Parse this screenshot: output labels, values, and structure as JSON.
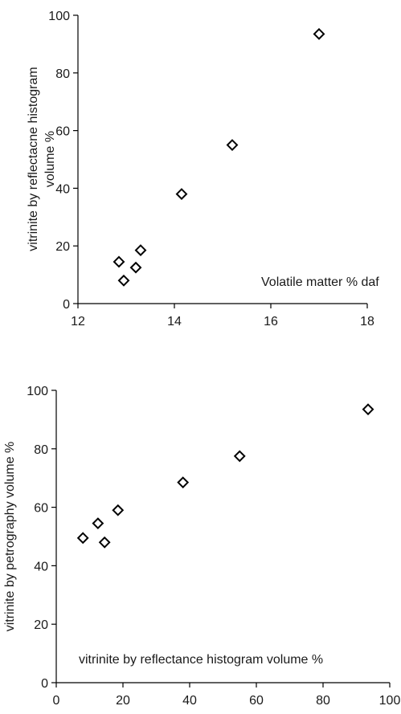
{
  "chart_data": [
    {
      "type": "scatter",
      "title": "",
      "xlabel": "Volatile matter % daf",
      "ylabel_lines": [
        "vitrinite by reflectacne histogram",
        "volume %"
      ],
      "xlim": [
        12,
        18
      ],
      "ylim": [
        0,
        100
      ],
      "x_ticks": [
        12,
        14,
        16,
        18
      ],
      "y_ticks": [
        0,
        20,
        40,
        60,
        80,
        100
      ],
      "grid": false,
      "marker": "open-diamond",
      "points": [
        {
          "x": 12.85,
          "y": 14.5
        },
        {
          "x": 12.95,
          "y": 8
        },
        {
          "x": 13.2,
          "y": 12.5
        },
        {
          "x": 13.3,
          "y": 18.5
        },
        {
          "x": 14.15,
          "y": 38
        },
        {
          "x": 15.2,
          "y": 55
        },
        {
          "x": 17,
          "y": 93.5
        }
      ]
    },
    {
      "type": "scatter",
      "title": "",
      "xlabel": "vitrinite by reflectance histogram volume %",
      "ylabel": "vitrinite by petrography volume %",
      "xlim": [
        0,
        100
      ],
      "ylim": [
        0,
        100
      ],
      "x_ticks": [
        0,
        20,
        40,
        60,
        80,
        100
      ],
      "y_ticks": [
        0,
        20,
        40,
        60,
        80,
        100
      ],
      "grid": false,
      "marker": "open-diamond",
      "points": [
        {
          "x": 8,
          "y": 49.5
        },
        {
          "x": 12.5,
          "y": 54.5
        },
        {
          "x": 14.5,
          "y": 48
        },
        {
          "x": 18.5,
          "y": 59
        },
        {
          "x": 38,
          "y": 68.5
        },
        {
          "x": 55,
          "y": 77.5
        },
        {
          "x": 93.5,
          "y": 93.5
        }
      ]
    }
  ]
}
